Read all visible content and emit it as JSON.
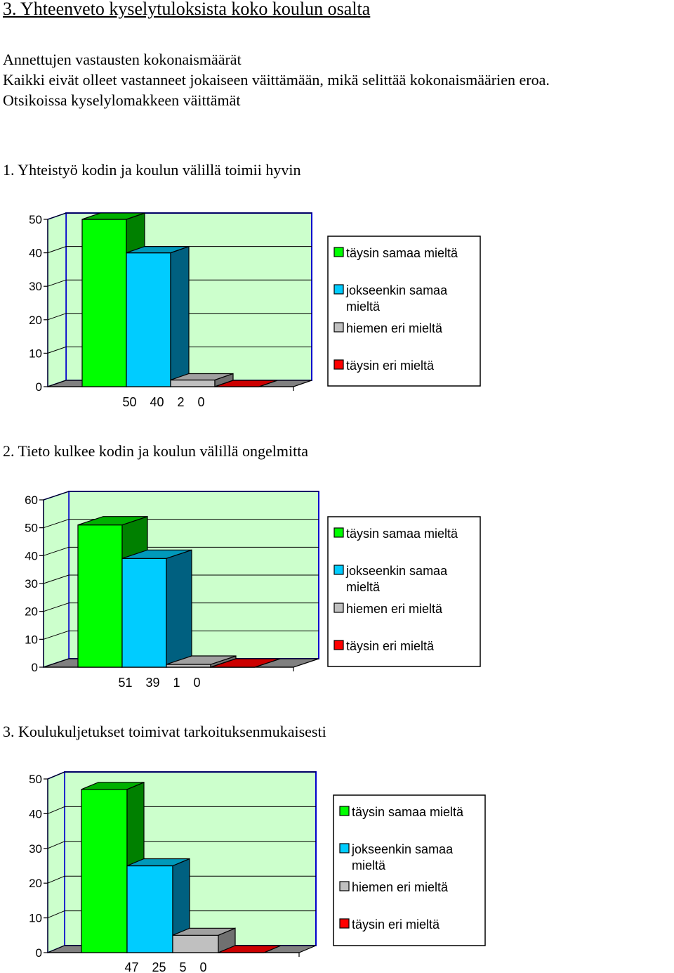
{
  "page": {
    "title": "3. Yhteenveto kyselytuloksista koko koulun osalta",
    "intro": [
      "Annettujen vastausten kokonaismäärät",
      "Kaikki eivät olleet vastanneet jokaiseen väittämään, mikä selittää kokonaismäärien eroa.",
      "Otsikoissa kyselylomakkeen väittämät"
    ]
  },
  "legend_labels": [
    "täysin samaa mieltä",
    "jokseenkin samaa mieltä",
    "hiemen eri mieltä",
    "täysin eri mieltä"
  ],
  "colors": {
    "plot_background": "#ccffcc",
    "axis_frame": "#0000cc",
    "series": [
      "#00ff00",
      "#00ccff",
      "#c0c0c0",
      "#ff0000"
    ],
    "series_side": [
      "#008000",
      "#006080",
      "#707070",
      "#800000"
    ],
    "series_top": [
      "#00b000",
      "#0099bb",
      "#a0a0a0",
      "#cc0000"
    ],
    "floor": "#808080"
  },
  "chart_data": [
    {
      "type": "bar",
      "title": "1. Yhteistyö kodin ja koulun välillä toimii hyvin",
      "categories": [
        "50 40 2 0"
      ],
      "series": [
        {
          "name": "täysin samaa mieltä",
          "values": [
            50
          ]
        },
        {
          "name": "jokseenkin samaa mieltä",
          "values": [
            40
          ]
        },
        {
          "name": "hiemen eri mieltä",
          "values": [
            2
          ]
        },
        {
          "name": "täysin eri mieltä",
          "values": [
            0
          ]
        }
      ],
      "ylim": [
        0,
        50
      ],
      "yticks": [
        "0",
        "10",
        "20",
        "30",
        "40",
        "50"
      ],
      "grid": true,
      "legend_position": "right"
    },
    {
      "type": "bar",
      "title": "2. Tieto kulkee kodin ja koulun välillä ongelmitta",
      "categories": [
        "51 39 1 0"
      ],
      "series": [
        {
          "name": "täysin samaa mieltä",
          "values": [
            51
          ]
        },
        {
          "name": "jokseenkin samaa mieltä",
          "values": [
            39
          ]
        },
        {
          "name": "hiemen eri mieltä",
          "values": [
            1
          ]
        },
        {
          "name": "täysin eri mieltä",
          "values": [
            0
          ]
        }
      ],
      "ylim": [
        0,
        60
      ],
      "yticks": [
        "0",
        "10",
        "20",
        "30",
        "40",
        "50",
        "60"
      ],
      "grid": true,
      "legend_position": "right"
    },
    {
      "type": "bar",
      "title": "3. Koulukuljetukset toimivat tarkoituksenmukaisesti",
      "categories": [
        "47 25 5 0"
      ],
      "series": [
        {
          "name": "täysin samaa mieltä",
          "values": [
            47
          ]
        },
        {
          "name": "jokseenkin samaa mieltä",
          "values": [
            25
          ]
        },
        {
          "name": "hiemen eri mieltä",
          "values": [
            5
          ]
        },
        {
          "name": "täysin eri mieltä",
          "values": [
            0
          ]
        }
      ],
      "ylim": [
        0,
        50
      ],
      "yticks": [
        "0",
        "10",
        "20",
        "30",
        "40",
        "50"
      ],
      "grid": true,
      "legend_position": "right"
    }
  ]
}
